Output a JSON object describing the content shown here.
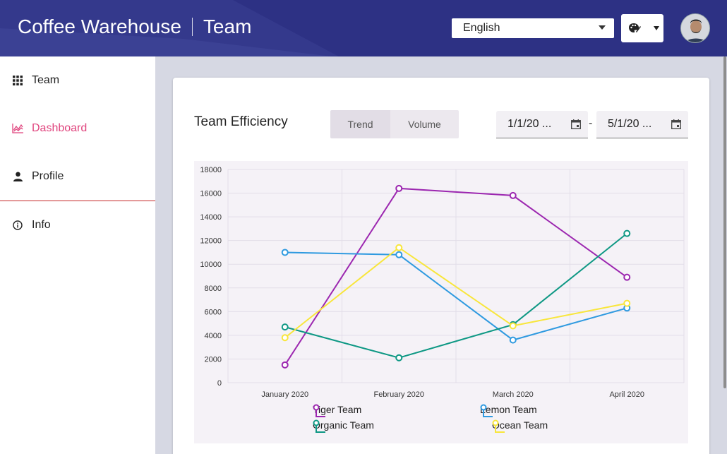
{
  "header": {
    "app_name": "Coffee Warehouse",
    "section": "Team",
    "language": {
      "selected": "English"
    },
    "theme_icon": "palette-icon",
    "avatar_icon": "user-avatar"
  },
  "sidebar": {
    "items": [
      {
        "label": "Team",
        "icon": "grid-icon",
        "active": false
      },
      {
        "label": "Dashboard",
        "icon": "chart-icon",
        "active": true
      },
      {
        "label": "Profile",
        "icon": "person-icon",
        "active": false
      },
      {
        "label": "Info",
        "icon": "info-icon",
        "active": false
      }
    ]
  },
  "colors": {
    "header_bg": "#2d3184",
    "accent": "#e0457e",
    "tiger": "#9c27b0",
    "lemon": "#2f9ae0",
    "organic": "#0e9884",
    "ocean": "#f8e63b"
  },
  "card": {
    "title": "Team Efficiency",
    "toggle": [
      "Trend",
      "Volume"
    ],
    "date_start": "1/1/20 ...",
    "date_end": "5/1/20 ...",
    "date_separator": "-"
  },
  "chart_data": {
    "type": "line",
    "categories": [
      "January 2020",
      "February 2020",
      "March 2020",
      "April 2020"
    ],
    "ylim": [
      0,
      18000
    ],
    "yticks": [
      0,
      2000,
      4000,
      6000,
      8000,
      10000,
      12000,
      14000,
      16000,
      18000
    ],
    "grid": true,
    "legend_position": "bottom",
    "series": [
      {
        "name": "Tiger Team",
        "color": "#9c27b0",
        "values": [
          1500,
          16400,
          15800,
          8900
        ]
      },
      {
        "name": "Lemon Team",
        "color": "#2f9ae0",
        "values": [
          11000,
          10800,
          3600,
          6300
        ]
      },
      {
        "name": "Organic Team",
        "color": "#0e9884",
        "values": [
          4700,
          2100,
          4900,
          12600
        ]
      },
      {
        "name": "Ocean Team",
        "color": "#f8e63b",
        "values": [
          3800,
          11400,
          4800,
          6700
        ]
      }
    ]
  }
}
